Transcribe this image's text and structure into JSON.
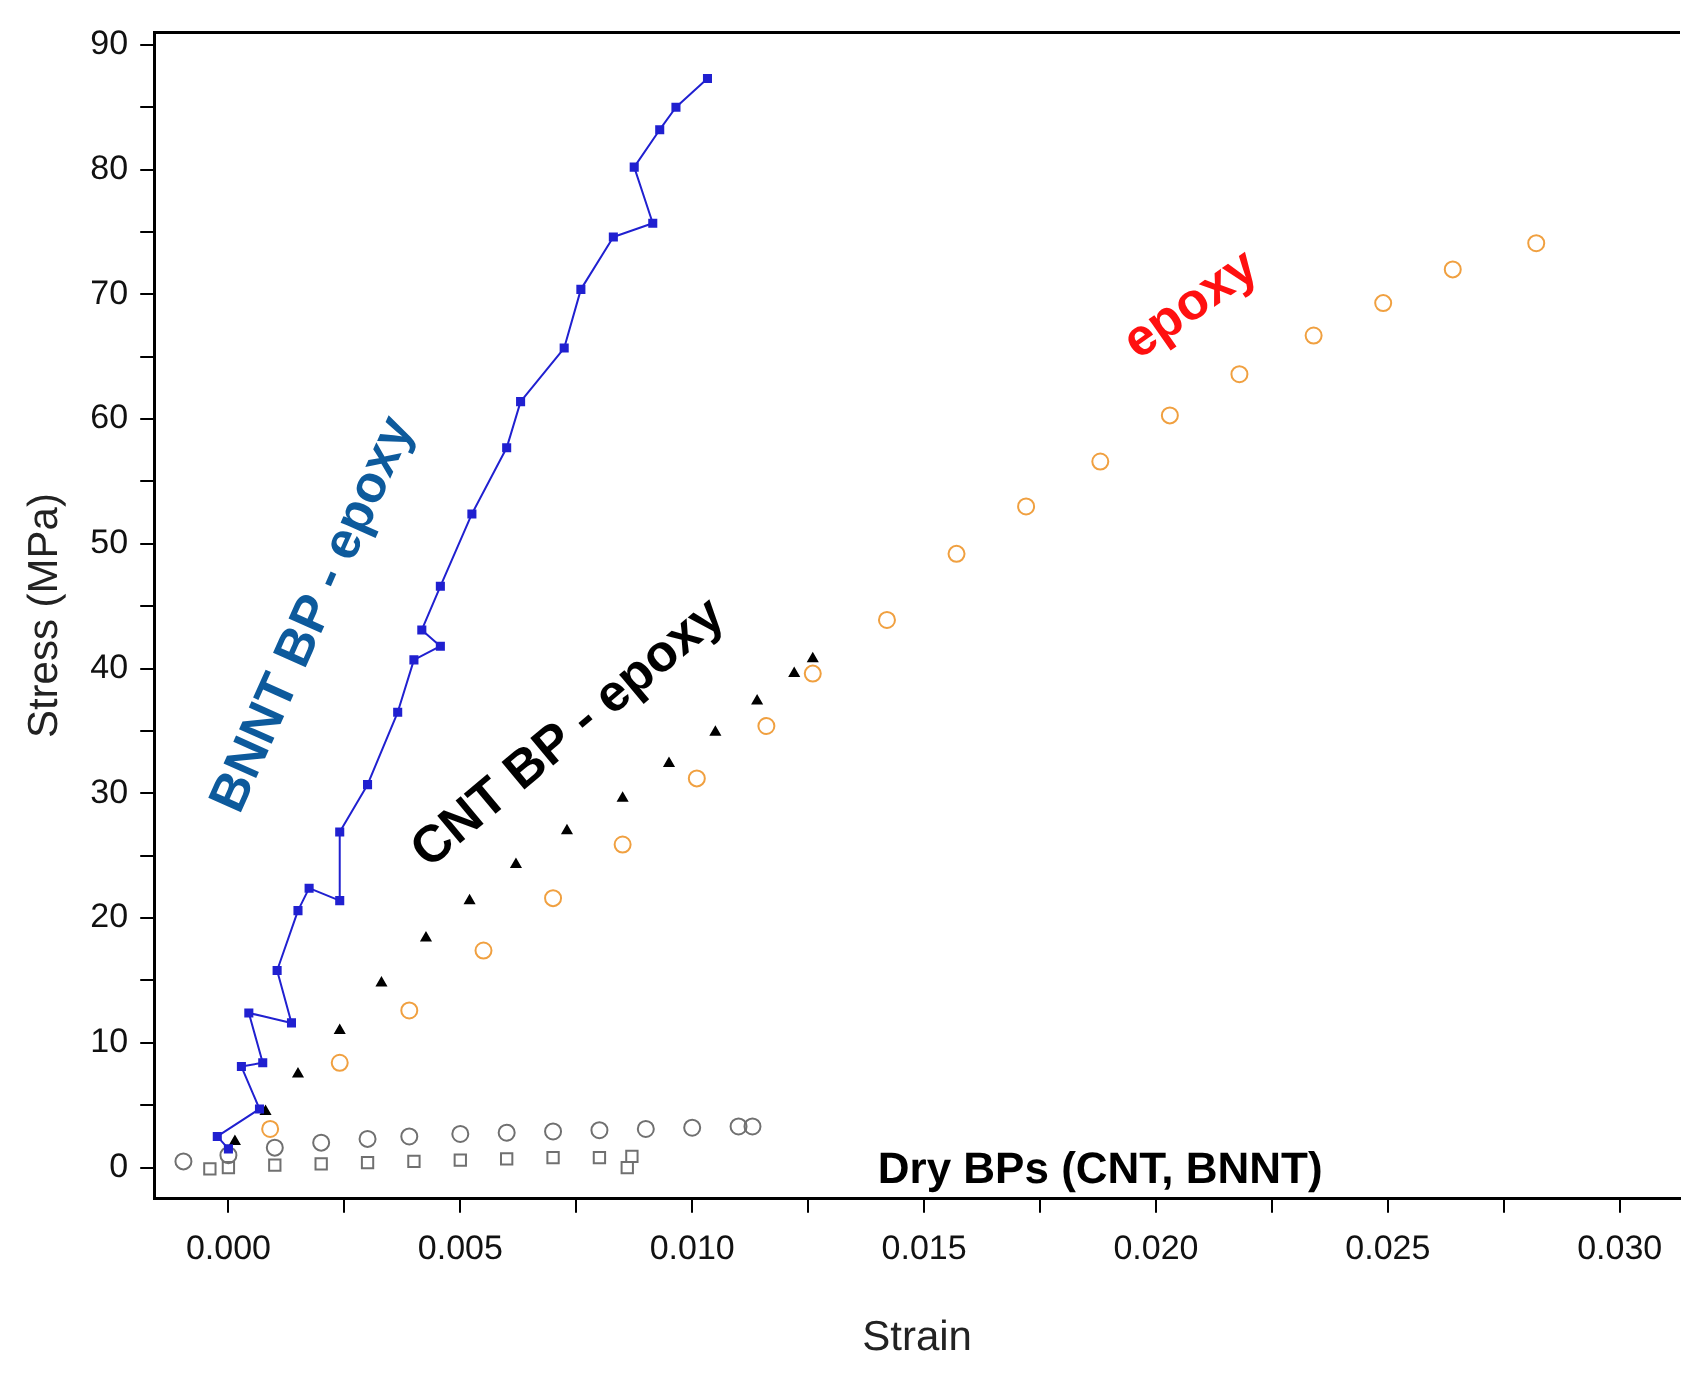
{
  "chart_data": {
    "type": "scatter",
    "xlabel": "Strain",
    "ylabel": "Stress (MPa)",
    "xlim": [
      -0.0016,
      0.0313
    ],
    "ylim": [
      -2.5,
      91
    ],
    "xticks": [
      {
        "value": 0,
        "label": "0.000"
      },
      {
        "value": 0.0025,
        "label": null
      },
      {
        "value": 0.005,
        "label": "0.005"
      },
      {
        "value": 0.0075,
        "label": null
      },
      {
        "value": 0.01,
        "label": "0.010"
      },
      {
        "value": 0.0125,
        "label": null
      },
      {
        "value": 0.015,
        "label": "0.015"
      },
      {
        "value": 0.0175,
        "label": null
      },
      {
        "value": 0.02,
        "label": "0.020"
      },
      {
        "value": 0.0225,
        "label": null
      },
      {
        "value": 0.025,
        "label": "0.025"
      },
      {
        "value": 0.0275,
        "label": null
      },
      {
        "value": 0.03,
        "label": "0.030"
      }
    ],
    "yticks": [
      0,
      {
        "value": 5,
        "label": null
      },
      10,
      {
        "value": 15,
        "label": null
      },
      20,
      {
        "value": 25,
        "label": null
      },
      30,
      {
        "value": 35,
        "label": null
      },
      40,
      {
        "value": 45,
        "label": null
      },
      50,
      {
        "value": 55,
        "label": null
      },
      60,
      {
        "value": 65,
        "label": null
      },
      70,
      {
        "value": 75,
        "label": null
      },
      80,
      {
        "value": 85,
        "label": null
      },
      90
    ],
    "grid": false,
    "legend": false,
    "annotations": [
      "Dry BPs (CNT, BNNT)"
    ],
    "series": [
      {
        "name": "BNNT BP - epoxy",
        "type": "line",
        "marker": "square",
        "color": "#2020d0",
        "x": [
          0.0,
          -0.00024,
          0.00067,
          0.00028,
          0.00074,
          0.00044,
          0.00136,
          0.00105,
          0.0015,
          0.00174,
          0.0024,
          0.0024,
          0.003,
          0.00365,
          0.004,
          0.00457,
          0.00417,
          0.00457,
          0.00525,
          0.006,
          0.0063,
          0.00724,
          0.0076,
          0.0083,
          0.00915,
          0.00875,
          0.0093,
          0.00965,
          0.01033
        ],
        "values": [
          1.5,
          2.5,
          4.7,
          8.1,
          8.4,
          12.4,
          11.6,
          15.8,
          20.6,
          22.4,
          21.4,
          26.9,
          30.7,
          36.5,
          40.7,
          41.8,
          43.1,
          46.6,
          52.4,
          57.7,
          61.4,
          65.7,
          70.4,
          74.6,
          75.7,
          80.2,
          83.2,
          85.0,
          87.3
        ]
      },
      {
        "name": "CNT BP - epoxy",
        "type": "scatter",
        "marker": "triangle",
        "color": "#000000",
        "x": [
          0.00014,
          0.0008,
          0.0015,
          0.0024,
          0.0033,
          0.00426,
          0.0052,
          0.0062,
          0.0073,
          0.0085,
          0.0095,
          0.0105,
          0.0114,
          0.0122,
          0.0126
        ],
        "values": [
          2.1,
          4.5,
          7.5,
          11,
          14.8,
          18.4,
          21.4,
          24.3,
          27.0,
          29.6,
          32.4,
          34.9,
          37.4,
          39.6,
          40.8
        ]
      },
      {
        "name": "epoxy",
        "type": "scatter",
        "marker": "circle",
        "color": "#f0a040",
        "x": [
          0.0009,
          0.0024,
          0.0039,
          0.0055,
          0.007,
          0.0085,
          0.0101,
          0.0116,
          0.0126,
          0.0142,
          0.0157,
          0.0172,
          0.0188,
          0.0203,
          0.0218,
          0.0234,
          0.0249,
          0.0264,
          0.0282
        ],
        "values": [
          3.1,
          8.4,
          12.6,
          17.4,
          21.6,
          25.9,
          31.2,
          35.4,
          39.6,
          43.9,
          49.2,
          53.0,
          56.6,
          60.3,
          63.6,
          66.7,
          69.3,
          72.0,
          74.1
        ]
      },
      {
        "type": "scatter",
        "marker": "circle",
        "color": "#707070",
        "x": [
          -0.00097,
          0.0,
          0.001,
          0.002,
          0.003,
          0.0039,
          0.005,
          0.006,
          0.007,
          0.008,
          0.009,
          0.01,
          0.011,
          0.0113
        ],
        "values": [
          0.5,
          1.0,
          1.6,
          2.0,
          2.3,
          2.5,
          2.7,
          2.8,
          2.9,
          3.0,
          3.1,
          3.2,
          3.3,
          3.3
        ]
      },
      {
        "type": "scatter",
        "marker": "square",
        "color": "#707070",
        "x": [
          -0.0004,
          0.0,
          0.001,
          0.002,
          0.003,
          0.004,
          0.005,
          0.006,
          0.007,
          0.008,
          0.0087,
          0.0086
        ],
        "values": [
          -0.1,
          0.0,
          0.2,
          0.3,
          0.4,
          0.5,
          0.6,
          0.7,
          0.8,
          0.8,
          0.9,
          0.0
        ]
      }
    ]
  }
}
